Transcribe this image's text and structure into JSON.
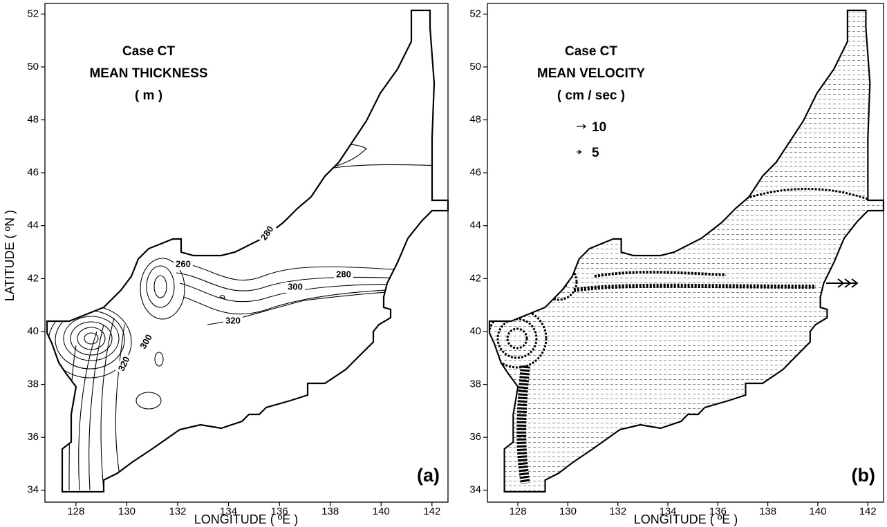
{
  "figure": {
    "x_label": "LONGITUDE ( ºE )",
    "y_label": "LATITUDE ( ºN )",
    "xlim": [
      126.78,
      142.63
    ],
    "ylim": [
      33.55,
      52.4
    ],
    "xticks": [
      128,
      130,
      132,
      134,
      136,
      138,
      140,
      142
    ],
    "yticks": [
      34,
      36,
      38,
      40,
      42,
      44,
      46,
      48,
      50,
      52
    ],
    "panels": [
      {
        "title_lines": [
          "Case  CT",
          "MEAN THICKNESS",
          "( m )"
        ],
        "panel_label": "(a)",
        "contour_labels": [
          280,
          260,
          280,
          300,
          320,
          300,
          320
        ]
      },
      {
        "title_lines": [
          "Case  CT",
          "MEAN VELOCITY",
          "( cm / sec )"
        ],
        "panel_label": "(b)",
        "arrow_legend": [
          10,
          5
        ]
      }
    ]
  }
}
